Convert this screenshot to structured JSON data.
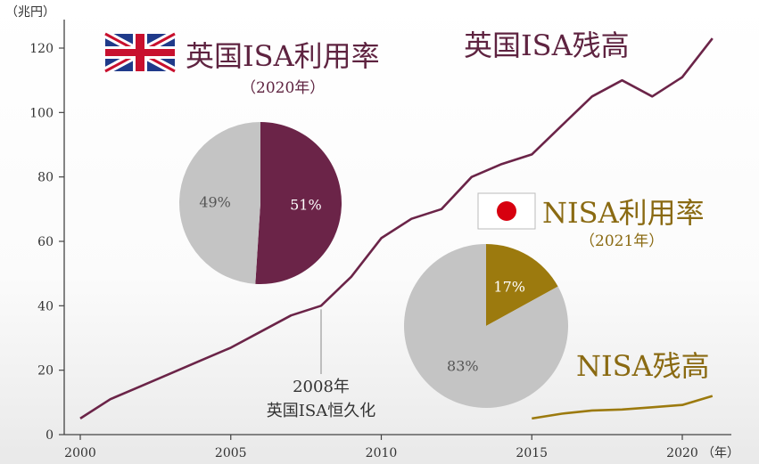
{
  "colors": {
    "uk_isa": "#6b2448",
    "nisa": "#9c7a0e",
    "pie_grey": "#c4c4c4",
    "axis": "#444444",
    "annotation_line": "#888888"
  },
  "chart_data": [
    {
      "type": "line",
      "ylabel": "（兆円）",
      "xlabel": "（年）",
      "xlim": [
        2000,
        2022
      ],
      "ylim": [
        0,
        125
      ],
      "xticks": [
        2000,
        2005,
        2010,
        2015,
        2020
      ],
      "yticks": [
        0,
        20,
        40,
        60,
        80,
        100,
        120
      ],
      "grid": false,
      "series": [
        {
          "name": "英国ISA残高",
          "x": [
            2000,
            2001,
            2002,
            2003,
            2004,
            2005,
            2006,
            2007,
            2008,
            2009,
            2010,
            2011,
            2012,
            2013,
            2014,
            2015,
            2016,
            2017,
            2018,
            2019,
            2020,
            2021
          ],
          "values": [
            5,
            11,
            15,
            19,
            23,
            27,
            32,
            37,
            40,
            49,
            61,
            67,
            70,
            80,
            84,
            87,
            96,
            105,
            110,
            105,
            111,
            123
          ]
        },
        {
          "name": "NISA残高",
          "x": [
            2015,
            2016,
            2017,
            2018,
            2019,
            2020,
            2021
          ],
          "values": [
            5,
            6.5,
            7.5,
            7.8,
            8.5,
            9.2,
            12
          ]
        }
      ],
      "annotations": [
        {
          "x": 2008,
          "y": 40,
          "line1": "2008年",
          "line2": "英国ISA恒久化"
        }
      ]
    },
    {
      "type": "pie",
      "title": "英国ISA利用率",
      "subtitle": "（2020年）",
      "slices": [
        {
          "label": "51%",
          "value": 51,
          "color": "#6b2448"
        },
        {
          "label": "49%",
          "value": 49,
          "color": "#c4c4c4"
        }
      ]
    },
    {
      "type": "pie",
      "title": "NISA利用率",
      "subtitle": "（2021年）",
      "slices": [
        {
          "label": "17%",
          "value": 17,
          "color": "#9c7a0e"
        },
        {
          "label": "83%",
          "value": 83,
          "color": "#c4c4c4"
        }
      ]
    }
  ]
}
